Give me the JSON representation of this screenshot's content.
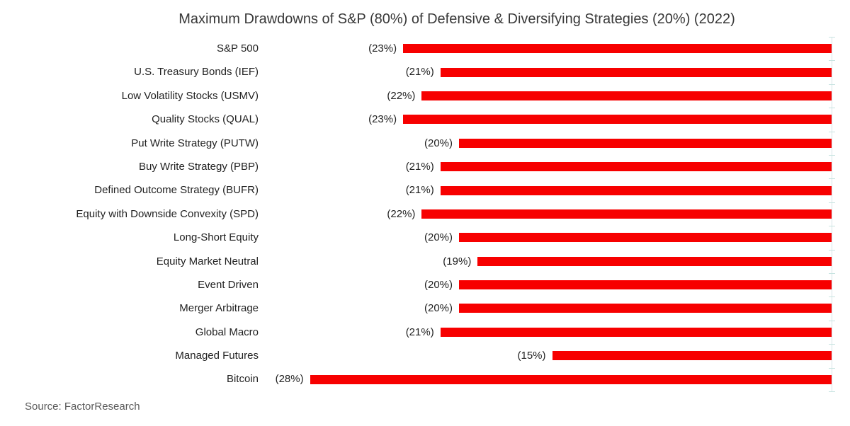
{
  "source_note": "Source: FactorResearch",
  "colors": {
    "bar": "#f70000",
    "axis_line": "#d8e4e8",
    "axis_tick": "#c8e4e1",
    "title_text": "#383838",
    "label_text": "#222222",
    "source_text": "#5a5a5a"
  },
  "chart_data": {
    "type": "bar",
    "orientation": "horizontal",
    "title": "Maximum Drawdowns of S&P (80%) of Defensive & Diversifying Strategies (20%) (2022)",
    "xlabel": "",
    "ylabel": "",
    "xlim": [
      -30,
      0
    ],
    "grid": false,
    "legend": "none",
    "value_format": "parentheses-negative-percent",
    "categories": [
      "S&P 500",
      "U.S. Treasury Bonds (IEF)",
      "Low Volatility Stocks (USMV)",
      "Quality Stocks (QUAL)",
      "Put Write Strategy (PUTW)",
      "Buy Write Strategy (PBP)",
      "Defined Outcome Strategy (BUFR)",
      "Equity with Downside Convexity (SPD)",
      "Long-Short Equity",
      "Equity Market Neutral",
      "Event Driven",
      "Merger Arbitrage",
      "Global Macro",
      "Managed Futures",
      "Bitcoin"
    ],
    "values": [
      -23,
      -21,
      -22,
      -23,
      -20,
      -21,
      -21,
      -22,
      -20,
      -19,
      -20,
      -20,
      -21,
      -15,
      -28
    ],
    "value_labels": [
      "(23%)",
      "(21%)",
      "(22%)",
      "(23%)",
      "(20%)",
      "(21%)",
      "(21%)",
      "(22%)",
      "(20%)",
      "(19%)",
      "(20%)",
      "(20%)",
      "(21%)",
      "(15%)",
      "(28%)"
    ]
  }
}
